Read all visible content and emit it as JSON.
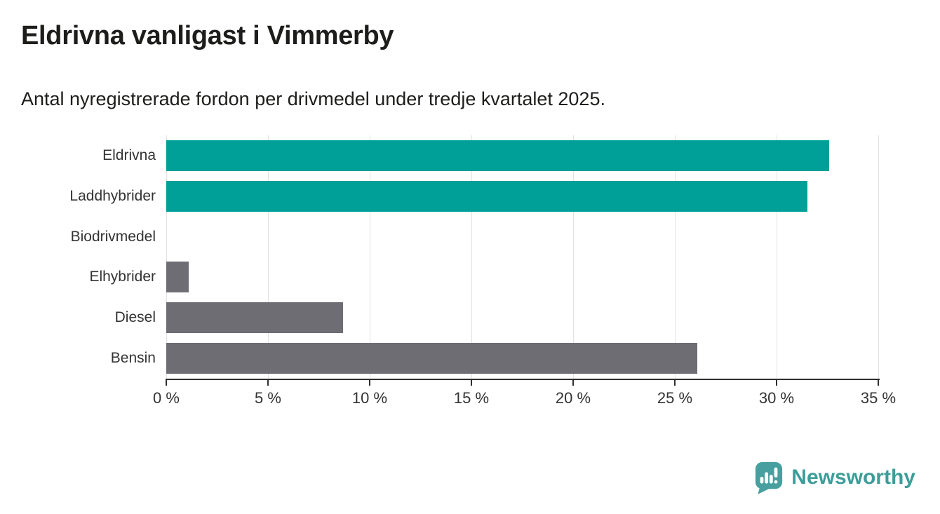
{
  "header": {
    "title": "Eldrivna vanligast i Vimmerby",
    "subtitle": "Antal nyregistrerade fordon per drivmedel under tredje kvartalet 2025."
  },
  "chart_data": {
    "type": "bar",
    "orientation": "horizontal",
    "title": "Eldrivna vanligast i Vimmerby",
    "subtitle": "Antal nyregistrerade fordon per drivmedel under tredje kvartalet 2025.",
    "categories": [
      "Eldrivna",
      "Laddhybrider",
      "Biodrivmedel",
      "Elhybrider",
      "Diesel",
      "Bensin"
    ],
    "values": [
      32.6,
      31.5,
      0,
      1.1,
      8.7,
      26.1
    ],
    "unit": "%",
    "bar_colors": [
      "#00a099",
      "#00a099",
      "#6e6d74",
      "#6e6d74",
      "#6e6d74",
      "#6e6d74"
    ],
    "xlabel": "",
    "ylabel": "",
    "xlim": [
      0,
      35
    ],
    "xticks": [
      0,
      5,
      10,
      15,
      20,
      25,
      30,
      35
    ],
    "xtick_labels": [
      "0 %",
      "5 %",
      "10 %",
      "15 %",
      "20 %",
      "25 %",
      "30 %",
      "35 %"
    ],
    "grid": "vertical",
    "legend": false
  },
  "colors": {
    "teal_bar": "#00a099",
    "gray_bar": "#6e6d74",
    "grid": "#e2e2e2",
    "axis": "#2f2f2f",
    "text_dark": "#1d1d1b",
    "text_axis": "#333333",
    "brand": "#3d9d99",
    "logo_bubble": "#47a09f"
  },
  "footer": {
    "brand": "Newsworthy"
  }
}
